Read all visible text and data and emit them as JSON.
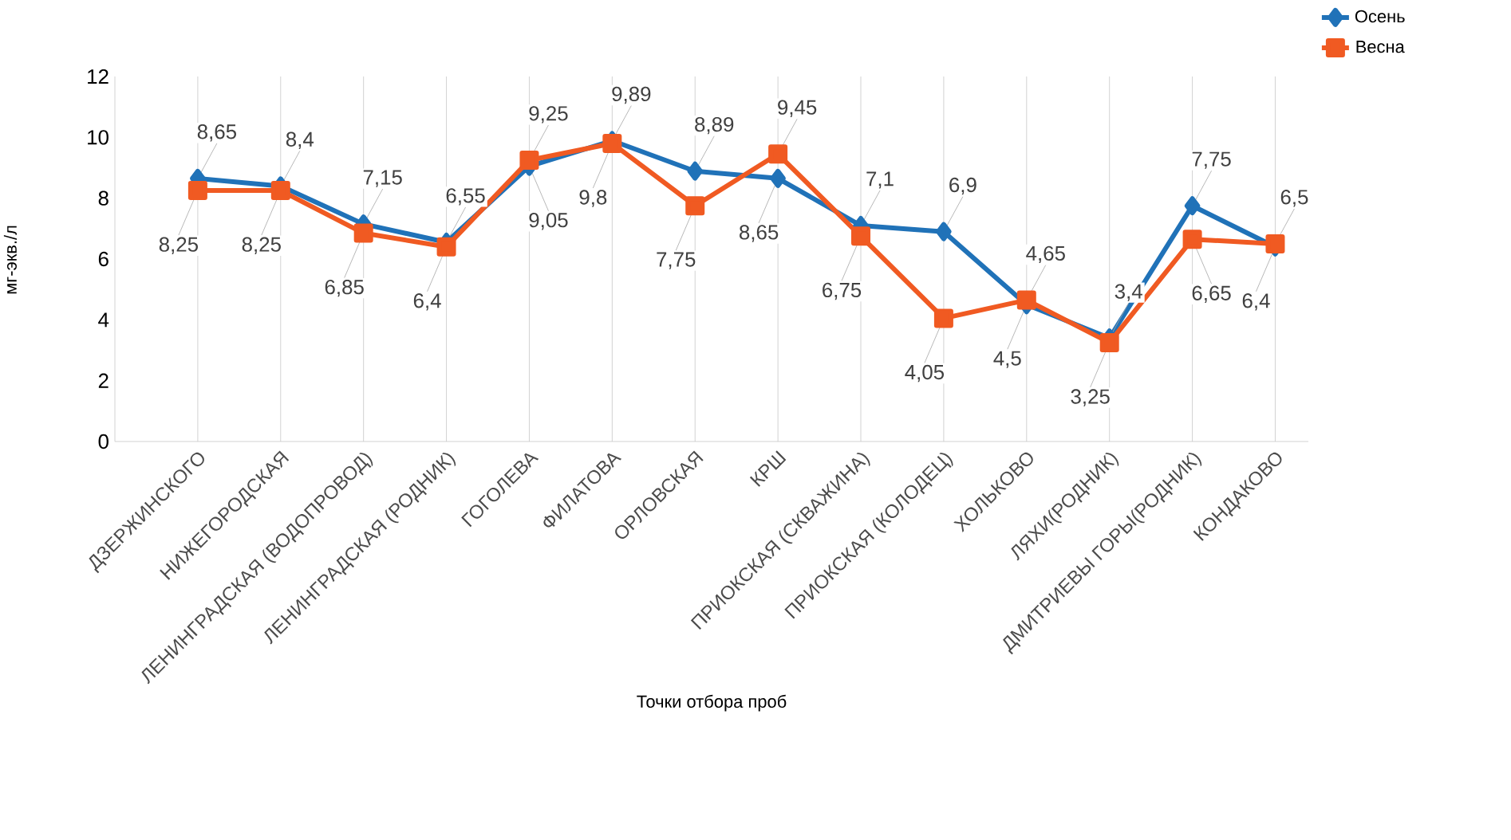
{
  "chart_data": {
    "type": "line",
    "xlabel": "Точки отбора проб",
    "ylabel": "мг-экв./л",
    "categories": [
      "ДЗЕРЖИНСКОГО",
      "НИЖЕГОРОДСКАЯ",
      "ЛЕНИНГРАДСКАЯ (ВОДОПРОВОД)",
      "ЛЕНИНГРАДСКАЯ (РОДНИК)",
      "ГОГОЛЕВА",
      "ФИЛАТОВА",
      "ОРЛОВСКАЯ",
      "КРШ",
      "ПРИОКСКАЯ (СКВАЖИНА)",
      "ПРИОКСКАЯ (КОЛОДЕЦ)",
      "ХОЛЬКОВО",
      "ЛЯХИ(РОДНИК)",
      "ДМИТРИЕВЫ ГОРЫ(РОДНИК)",
      "КОНДАКОВО"
    ],
    "series": [
      {
        "name": "Осень",
        "color": "#2072b8",
        "marker": "diamond",
        "values": [
          8.65,
          8.4,
          7.15,
          6.55,
          9.05,
          9.89,
          8.89,
          8.65,
          7.1,
          6.9,
          4.5,
          3.4,
          7.75,
          6.4
        ],
        "value_labels": [
          "8,65",
          "8,4",
          "7,15",
          "6,55",
          "9,05",
          "9,89",
          "8,89",
          "8,65",
          "7,1",
          "6,9",
          "4,5",
          "3,4",
          "7,75",
          "6,4"
        ]
      },
      {
        "name": "Весна",
        "color": "#f05a22",
        "marker": "square",
        "values": [
          8.25,
          8.25,
          6.85,
          6.4,
          9.25,
          9.8,
          7.75,
          9.45,
          6.75,
          4.05,
          4.65,
          3.25,
          6.65,
          6.5
        ],
        "value_labels": [
          "8,25",
          "8,25",
          "6,85",
          "6,4",
          "9,25",
          "9,8",
          "7,75",
          "9,45",
          "6,75",
          "4,05",
          "4,65",
          "3,25",
          "6,65",
          "6,5"
        ]
      }
    ],
    "ylim": [
      0,
      12
    ],
    "yticks": [
      0,
      2,
      4,
      6,
      8,
      10,
      12
    ],
    "grid": "x",
    "legend": "top right",
    "line_style": "solid"
  }
}
